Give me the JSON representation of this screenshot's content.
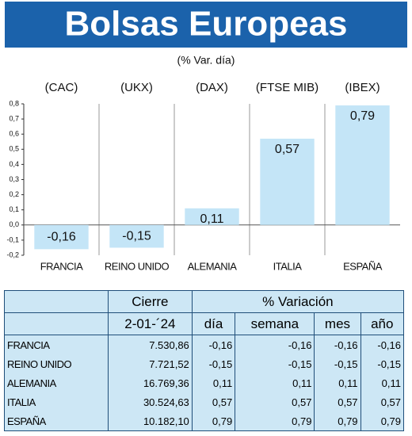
{
  "chart_data": {
    "type": "bar",
    "title": "Bolsas Europeas",
    "subtitle": "(% Var. día)",
    "tickers": [
      "(CAC)",
      "(UKX)",
      "(DAX)",
      "(FTSE MIB)",
      "(IBEX)"
    ],
    "categories": [
      "FRANCIA",
      "REINO UNIDO",
      "ALEMANIA",
      "ITALIA",
      "ESPAÑA"
    ],
    "values": [
      -0.16,
      -0.15,
      0.11,
      0.57,
      0.79
    ],
    "value_labels": [
      "-0,16",
      "-0,15",
      "0,11",
      "0,57",
      "0,79"
    ],
    "color": "#c4e5f7",
    "ylim": [
      -0.2,
      0.8
    ],
    "yticks": [
      {
        "value": -0.2,
        "label": "-0,2"
      },
      {
        "value": -0.1,
        "label": "-0,1"
      },
      {
        "value": 0,
        "label": "0,0"
      },
      {
        "value": 0.1,
        "label": "0,1"
      },
      {
        "value": 0.2,
        "label": "0,2"
      },
      {
        "value": 0.3,
        "label": "0,3"
      },
      {
        "value": 0.4,
        "label": "0,4"
      },
      {
        "value": 0.5,
        "label": "0,5"
      },
      {
        "value": 0.6,
        "label": "0,6"
      },
      {
        "value": 0.7,
        "label": "0,7"
      },
      {
        "value": 0.8,
        "label": "0,8"
      }
    ],
    "grid": false
  },
  "table": {
    "group_headers": [
      "Cierre",
      "% Variación"
    ],
    "columns": [
      "2-01-´24",
      "día",
      "semana",
      "mes",
      "año"
    ],
    "rows": [
      [
        "FRANCIA",
        "7.530,86",
        "-0,16",
        "-0,16",
        "-0,16",
        "-0,16"
      ],
      [
        "REINO UNIDO",
        "7.721,52",
        "-0,15",
        "-0,15",
        "-0,15",
        "-0,15"
      ],
      [
        "ALEMANIA",
        "16.769,36",
        "0,11",
        "0,11",
        "0,11",
        "0,11"
      ],
      [
        "ITALIA",
        "30.524,63",
        "0,57",
        "0,57",
        "0,57",
        "0,57"
      ],
      [
        "ESPAÑA",
        "10.182,10",
        "0,79",
        "0,79",
        "0,79",
        "0,79"
      ]
    ]
  }
}
